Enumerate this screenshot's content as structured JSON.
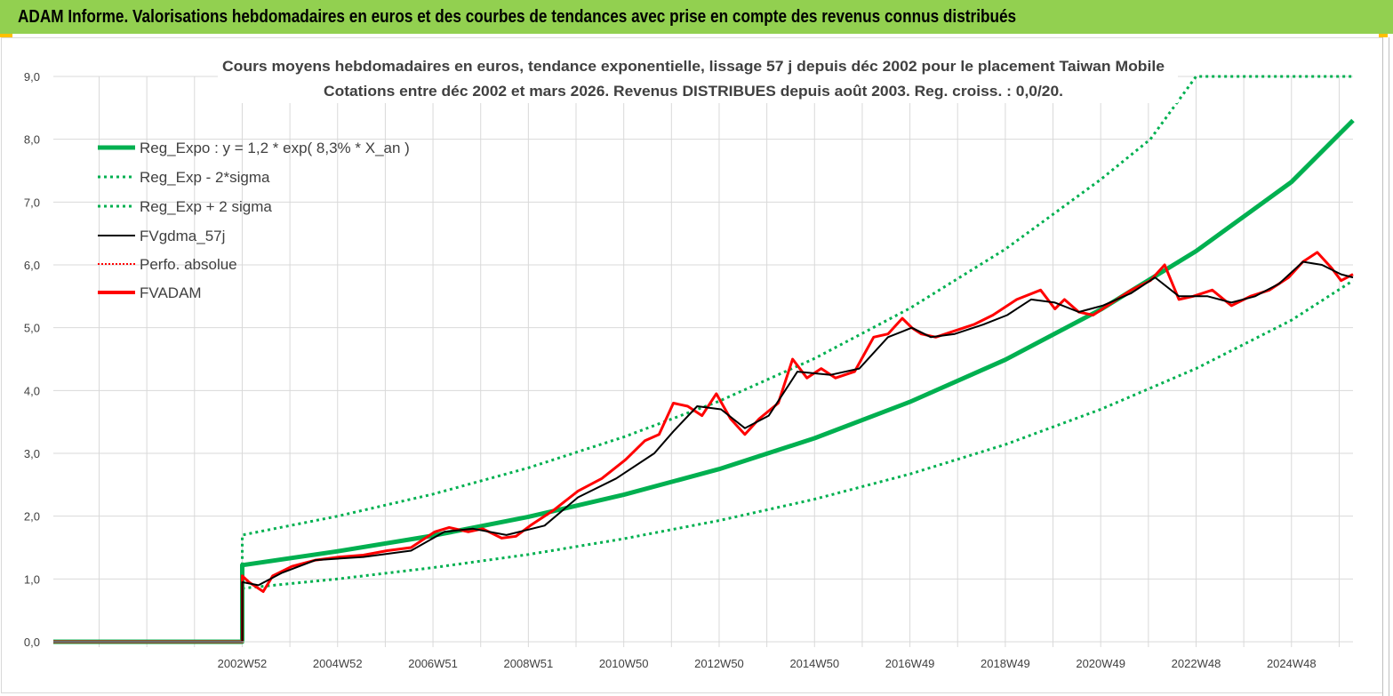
{
  "header": {
    "title": "ADAM Informe. Valorisations hebdomadaires en euros et des courbes de tendances avec prise en compte des revenus connus distribués"
  },
  "colors": {
    "header_bg": "#92d050",
    "accent": "#ffc000",
    "trend": "#00b050",
    "gdma": "#000000",
    "adam": "#ff0000",
    "perfo": "#ff0000",
    "grid": "#d9d9d9"
  },
  "chart_data": {
    "type": "line",
    "title": "Cours moyens hebdomadaires en euros, tendance exponentielle, lissage 57 j depuis déc 2002 pour le placement Taiwan Mobile",
    "subtitle": "Cotations entre déc 2002 et mars 2026.  Revenus DISTRIBUES depuis août 2003. Reg. croiss. : 0,0/20.",
    "xlabel": "",
    "ylabel": "",
    "x_range": [
      1999.0,
      2026.25
    ],
    "x_ticks": [
      {
        "x": 2002.96,
        "label": "2002W52"
      },
      {
        "x": 2004.96,
        "label": "2004W52"
      },
      {
        "x": 2006.96,
        "label": "2006W51"
      },
      {
        "x": 2008.96,
        "label": "2008W51"
      },
      {
        "x": 2010.96,
        "label": "2010W50"
      },
      {
        "x": 2012.96,
        "label": "2012W50"
      },
      {
        "x": 2014.96,
        "label": "2014W50"
      },
      {
        "x": 2016.96,
        "label": "2016W49"
      },
      {
        "x": 2018.96,
        "label": "2018W49"
      },
      {
        "x": 2020.96,
        "label": "2020W49"
      },
      {
        "x": 2022.96,
        "label": "2022W48"
      },
      {
        "x": 2024.96,
        "label": "2024W48"
      }
    ],
    "ylim": [
      0,
      9
    ],
    "y_ticks": [
      "0,0",
      "1,0",
      "2,0",
      "3,0",
      "4,0",
      "5,0",
      "6,0",
      "7,0",
      "8,0",
      "9,0"
    ],
    "legend": [
      {
        "key": "reg_expo",
        "label": "Reg_Expo : y = 1,2 * exp( 8,3% *  X_an )"
      },
      {
        "key": "reg_minus",
        "label": "Reg_Exp - 2*sigma"
      },
      {
        "key": "reg_plus",
        "label": "Reg_Exp + 2 sigma"
      },
      {
        "key": "gdma",
        "label": "FVgdma_57j"
      },
      {
        "key": "perfo",
        "label": "Perfo. absolue"
      },
      {
        "key": "adam",
        "label": "FVADAM"
      }
    ],
    "series": [
      {
        "key": "reg_expo",
        "name": "Reg_Expo : y = 1,2 * exp( 8,3% *  X_an )",
        "style": "thick",
        "x": [
          1999.0,
          2002.96,
          2002.96,
          2004.96,
          2006.96,
          2008.96,
          2010.96,
          2012.96,
          2014.96,
          2016.96,
          2018.96,
          2020.96,
          2022.96,
          2024.96,
          2026.25
        ],
        "y": [
          0,
          0,
          1.22,
          1.44,
          1.69,
          1.99,
          2.34,
          2.75,
          3.24,
          3.82,
          4.49,
          5.29,
          6.22,
          7.32,
          8.3
        ]
      },
      {
        "key": "reg_minus",
        "name": "Reg_Exp - 2*sigma",
        "style": "dotted",
        "x": [
          2002.96,
          2004.96,
          2006.96,
          2008.96,
          2010.96,
          2012.96,
          2014.96,
          2016.96,
          2018.96,
          2020.96,
          2022.96,
          2024.96,
          2026.25
        ],
        "y": [
          0.85,
          1.0,
          1.18,
          1.39,
          1.64,
          1.93,
          2.27,
          2.67,
          3.14,
          3.7,
          4.35,
          5.12,
          5.75
        ]
      },
      {
        "key": "reg_plus",
        "name": "Reg_Exp + 2 sigma",
        "style": "dotted",
        "x": [
          2002.96,
          2002.96,
          2004.96,
          2006.96,
          2008.96,
          2010.96,
          2012.96,
          2014.96,
          2016.96,
          2018.96,
          2020.96,
          2022.0,
          2022.96,
          2026.25
        ],
        "y": [
          1.22,
          1.7,
          2.0,
          2.35,
          2.77,
          3.26,
          3.83,
          4.51,
          5.31,
          6.25,
          7.36,
          8.0,
          9.0,
          9.0
        ]
      },
      {
        "key": "gdma",
        "name": "FVgdma_57j",
        "style": "thin",
        "x": [
          1999.0,
          2002.96,
          2002.96,
          2003.3,
          2003.8,
          2004.5,
          2005.5,
          2006.5,
          2007.2,
          2007.8,
          2008.5,
          2009.3,
          2010.0,
          2010.8,
          2011.6,
          2012.0,
          2012.5,
          2013.0,
          2013.5,
          2014.0,
          2014.6,
          2015.3,
          2015.9,
          2016.5,
          2017.0,
          2017.4,
          2017.9,
          2018.5,
          2019.0,
          2019.5,
          2020.0,
          2020.5,
          2021.0,
          2021.6,
          2022.1,
          2022.6,
          2023.2,
          2023.7,
          2024.2,
          2024.7,
          2025.2,
          2025.6,
          2026.0,
          2026.25
        ],
        "y": [
          0,
          0,
          0.95,
          0.9,
          1.1,
          1.3,
          1.35,
          1.45,
          1.75,
          1.8,
          1.7,
          1.85,
          2.3,
          2.6,
          3.0,
          3.35,
          3.75,
          3.7,
          3.4,
          3.6,
          4.3,
          4.25,
          4.35,
          4.85,
          5.0,
          4.85,
          4.9,
          5.05,
          5.2,
          5.45,
          5.4,
          5.25,
          5.35,
          5.55,
          5.8,
          5.5,
          5.5,
          5.4,
          5.5,
          5.7,
          6.05,
          6.0,
          5.85,
          5.8
        ]
      },
      {
        "key": "adam",
        "name": "FVADAM",
        "style": "thick",
        "x": [
          1999.0,
          2002.96,
          2002.96,
          2003.1,
          2003.4,
          2003.6,
          2004.0,
          2004.5,
          2005.0,
          2005.5,
          2006.0,
          2006.5,
          2007.0,
          2007.3,
          2007.7,
          2008.0,
          2008.4,
          2008.7,
          2009.0,
          2009.5,
          2010.0,
          2010.5,
          2011.0,
          2011.4,
          2011.7,
          2012.0,
          2012.3,
          2012.6,
          2012.9,
          2013.2,
          2013.5,
          2013.8,
          2014.2,
          2014.5,
          2014.8,
          2015.1,
          2015.4,
          2015.8,
          2016.2,
          2016.5,
          2016.8,
          2017.0,
          2017.2,
          2017.5,
          2017.9,
          2018.3,
          2018.7,
          2019.2,
          2019.7,
          2020.0,
          2020.2,
          2020.5,
          2020.8,
          2021.2,
          2021.6,
          2022.0,
          2022.3,
          2022.6,
          2022.9,
          2023.3,
          2023.7,
          2024.1,
          2024.5,
          2024.9,
          2025.2,
          2025.5,
          2025.8,
          2026.0,
          2026.25
        ],
        "y": [
          0,
          0,
          1.05,
          0.95,
          0.8,
          1.05,
          1.2,
          1.3,
          1.35,
          1.38,
          1.45,
          1.5,
          1.75,
          1.82,
          1.75,
          1.8,
          1.65,
          1.68,
          1.85,
          2.1,
          2.4,
          2.6,
          2.9,
          3.2,
          3.3,
          3.8,
          3.75,
          3.6,
          3.95,
          3.55,
          3.3,
          3.55,
          3.8,
          4.5,
          4.2,
          4.35,
          4.2,
          4.3,
          4.85,
          4.9,
          5.15,
          5.0,
          4.9,
          4.85,
          4.95,
          5.05,
          5.2,
          5.45,
          5.6,
          5.3,
          5.45,
          5.25,
          5.2,
          5.4,
          5.6,
          5.75,
          6.0,
          5.45,
          5.5,
          5.6,
          5.35,
          5.5,
          5.6,
          5.8,
          6.05,
          6.2,
          5.95,
          5.75,
          5.85
        ]
      }
    ]
  }
}
